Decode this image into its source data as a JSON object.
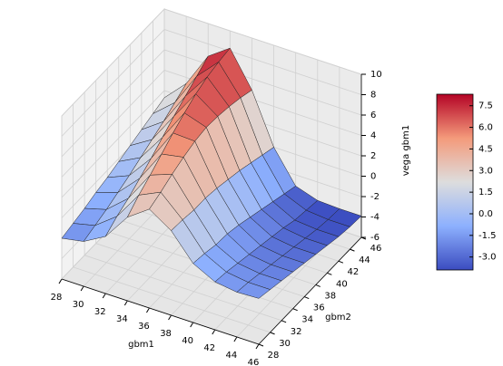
{
  "chart_data": {
    "type": "surface",
    "xlabel": "gbm1",
    "ylabel": "gbm2",
    "zlabel": "vega gbm1",
    "x": [
      28,
      30,
      32,
      34,
      36,
      38,
      40,
      42,
      44,
      46
    ],
    "y": [
      28,
      30,
      32,
      34,
      36,
      38,
      40,
      42,
      44,
      46
    ],
    "z": [
      [
        -2.0,
        -1.6,
        -0.4,
        2.2,
        3.7,
        2.3,
        -0.2,
        -1.3,
        -1.6,
        -1.5
      ],
      [
        -1.7,
        -1.2,
        0.4,
        3.2,
        4.2,
        2.2,
        -0.4,
        -1.5,
        -1.8,
        -1.8
      ],
      [
        -1.4,
        -0.8,
        1.0,
        4.0,
        4.8,
        2.0,
        -0.7,
        -1.8,
        -2.1,
        -2.1
      ],
      [
        -1.0,
        -0.3,
        1.8,
        4.9,
        5.3,
        2.0,
        -0.8,
        -2.1,
        -2.4,
        -2.4
      ],
      [
        -0.7,
        0.2,
        2.6,
        5.8,
        5.7,
        1.8,
        -1.1,
        -2.4,
        -2.7,
        -2.7
      ],
      [
        -0.3,
        0.8,
        3.5,
        6.6,
        5.9,
        1.5,
        -1.5,
        -2.7,
        -3.0,
        -3.0
      ],
      [
        0.1,
        1.4,
        4.4,
        7.3,
        5.8,
        1.2,
        -1.9,
        -3.0,
        -3.3,
        -3.3
      ],
      [
        0.5,
        2.0,
        5.2,
        7.8,
        5.6,
        0.8,
        -2.3,
        -3.4,
        -3.6,
        -3.6
      ],
      [
        0.9,
        2.7,
        6.0,
        8.1,
        5.3,
        0.4,
        -2.7,
        -3.6,
        -3.8,
        -3.8
      ],
      [
        1.3,
        3.4,
        6.8,
        8.3,
        4.9,
        0.0,
        -3.1,
        -3.8,
        -3.9,
        -3.9
      ]
    ],
    "xlim": [
      28,
      46
    ],
    "xticks": [
      28,
      30,
      32,
      34,
      36,
      38,
      40,
      42,
      44,
      46
    ],
    "ylim": [
      28,
      46
    ],
    "yticks": [
      28,
      30,
      32,
      34,
      36,
      38,
      40,
      42,
      44,
      46
    ],
    "zlim": [
      -6,
      10
    ],
    "zticks": [
      -6,
      -4,
      -2,
      0,
      2,
      4,
      6,
      8,
      10
    ],
    "grid": true,
    "colormap": [
      "#3b4cc0",
      "#8db0fe",
      "#dddddd",
      "#f49a7b",
      "#b40426"
    ],
    "clim": [
      -3.9,
      8.3
    ],
    "colorbar_ticks": [
      {
        "value": -3,
        "label": "-3.0"
      },
      {
        "value": -1.5,
        "label": "-1.5"
      },
      {
        "value": 0,
        "label": "0.0"
      },
      {
        "value": 1.5,
        "label": "1.5"
      },
      {
        "value": 3,
        "label": "3.0"
      },
      {
        "value": 4.5,
        "label": "4.5"
      },
      {
        "value": 6,
        "label": "6.0"
      },
      {
        "value": 7.5,
        "label": "7.5"
      }
    ]
  }
}
